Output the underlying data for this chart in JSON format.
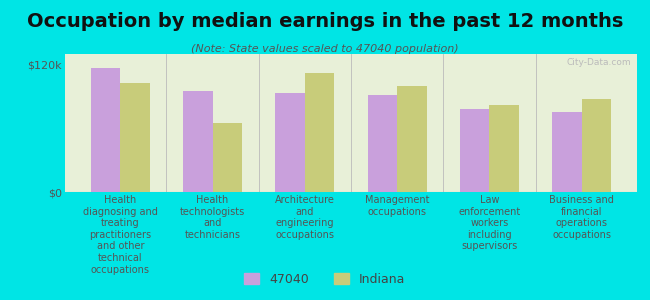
{
  "title": "Occupation by median earnings in the past 12 months",
  "subtitle": "(Note: State values scaled to 47040 population)",
  "background_color": "#00e5e5",
  "plot_bg_color": "#e8f0d8",
  "categories": [
    "Health\ndiagnosing and\ntreating\npractitioners\nand other\ntechnical\noccupations",
    "Health\ntechnologists\nand\ntechnicians",
    "Architecture\nand\nengineering\noccupations",
    "Management\noccupations",
    "Law\nenforcement\nworkers\nincluding\nsupervisors",
    "Business and\nfinancial\noperations\noccupations"
  ],
  "values_47040": [
    117000,
    95000,
    93000,
    91000,
    78000,
    75000
  ],
  "values_indiana": [
    103000,
    65000,
    112000,
    100000,
    82000,
    88000
  ],
  "color_47040": "#c9a0dc",
  "color_indiana": "#c8cc7a",
  "ylim": [
    0,
    130000
  ],
  "yticks": [
    0,
    120000
  ],
  "ytick_labels": [
    "$0",
    "$120k"
  ],
  "legend_47040": "47040",
  "legend_indiana": "Indiana",
  "bar_width": 0.32,
  "title_fontsize": 14,
  "subtitle_fontsize": 8,
  "xlabel_fontsize": 7,
  "ylabel_fontsize": 8
}
